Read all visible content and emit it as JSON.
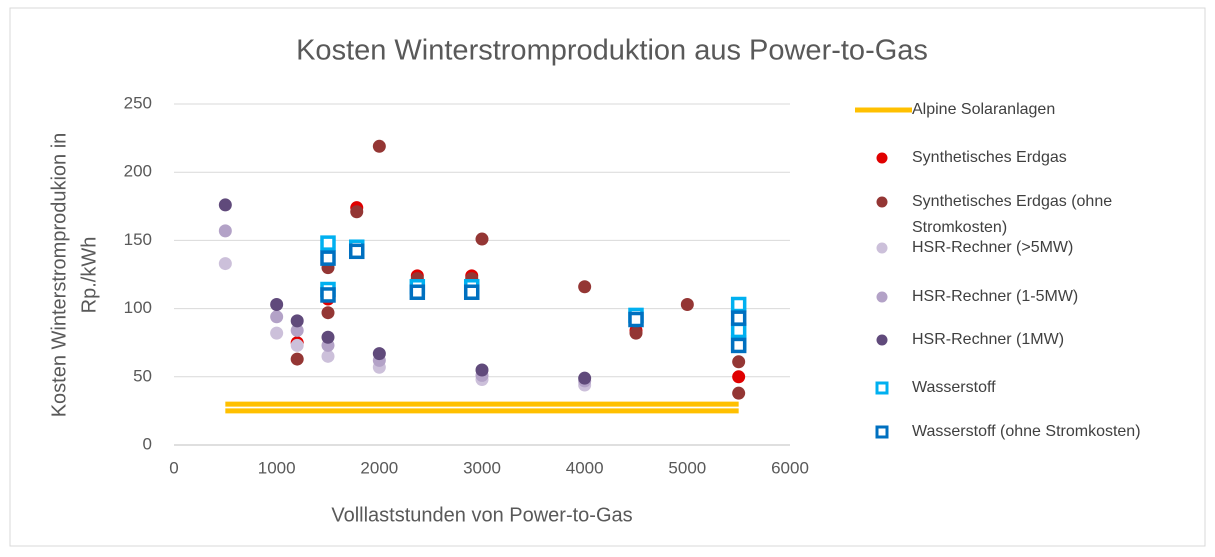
{
  "chart_data": {
    "type": "scatter",
    "title": "Kosten Winterstromproduktion aus Power-to-Gas",
    "xlabel": "Volllaststunden von Power-to-Gas",
    "ylabel": [
      "Kosten Winterstromprodukion in",
      "Rp./kWh"
    ],
    "xlim": [
      0,
      6000
    ],
    "xticks": [
      0,
      1000,
      2000,
      3000,
      4000,
      5000,
      6000
    ],
    "ylim": [
      0,
      250
    ],
    "yticks": [
      0,
      50,
      100,
      150,
      200,
      250
    ],
    "grid": true,
    "legend": "right",
    "series": [
      {
        "name": "Alpine Solaranlagen",
        "kind": "line",
        "color": "#ffc000",
        "x": [
          500,
          5500,
          null,
          500,
          5500
        ],
        "values": [
          30,
          30,
          null,
          25,
          25
        ]
      },
      {
        "name": "Synthetisches Erdgas",
        "kind": "circle",
        "color": "#e00000",
        "x": [
          1200,
          1500,
          1500,
          1780,
          2370,
          2900,
          4500,
          5500,
          5500
        ],
        "values": [
          75,
          140,
          107,
          174,
          124,
          124,
          84,
          73,
          50
        ]
      },
      {
        "name": "Synthetisches Erdgas (ohne Stromkosten)",
        "kind": "circle",
        "color": "#943634",
        "x": [
          1200,
          1500,
          1500,
          1500,
          1780,
          2000,
          2370,
          2900,
          3000,
          4000,
          4500,
          5000,
          5500,
          5500
        ],
        "values": [
          63,
          142,
          130,
          97,
          171,
          219,
          122,
          122,
          151,
          116,
          82,
          103,
          61,
          38
        ]
      },
      {
        "name": "HSR-Rechner (>5MW)",
        "kind": "circle",
        "color": "#ccc0da",
        "x": [
          500,
          1000,
          1200,
          1500,
          2000,
          3000,
          4000
        ],
        "values": [
          133,
          82,
          73,
          65,
          57,
          48,
          44
        ]
      },
      {
        "name": "HSR-Rechner (1-5MW)",
        "kind": "circle",
        "color": "#b3a2c7",
        "x": [
          500,
          1000,
          1200,
          1500,
          2000,
          3000,
          4000
        ],
        "values": [
          157,
          94,
          84,
          73,
          62,
          51,
          47
        ]
      },
      {
        "name": "HSR-Rechner (1MW)",
        "kind": "circle",
        "color": "#604a7b",
        "x": [
          500,
          1000,
          1200,
          1500,
          2000,
          3000,
          4000
        ],
        "values": [
          176,
          103,
          91,
          79,
          67,
          55,
          49
        ]
      },
      {
        "name": "Wasserstoff",
        "kind": "square",
        "color": "#00b0f0",
        "x": [
          1500,
          1500,
          1780,
          2370,
          2900,
          4500,
          5500,
          5500,
          5500
        ],
        "values": [
          148,
          114,
          145,
          116,
          116,
          95,
          103,
          84,
          75
        ]
      },
      {
        "name": "Wasserstoff (ohne Stromkosten)",
        "kind": "square",
        "color": "#0070c0",
        "x": [
          1500,
          1500,
          1780,
          2370,
          2900,
          4500,
          5500,
          5500
        ],
        "values": [
          137,
          110,
          142,
          112,
          112,
          92,
          93,
          73
        ]
      }
    ]
  }
}
